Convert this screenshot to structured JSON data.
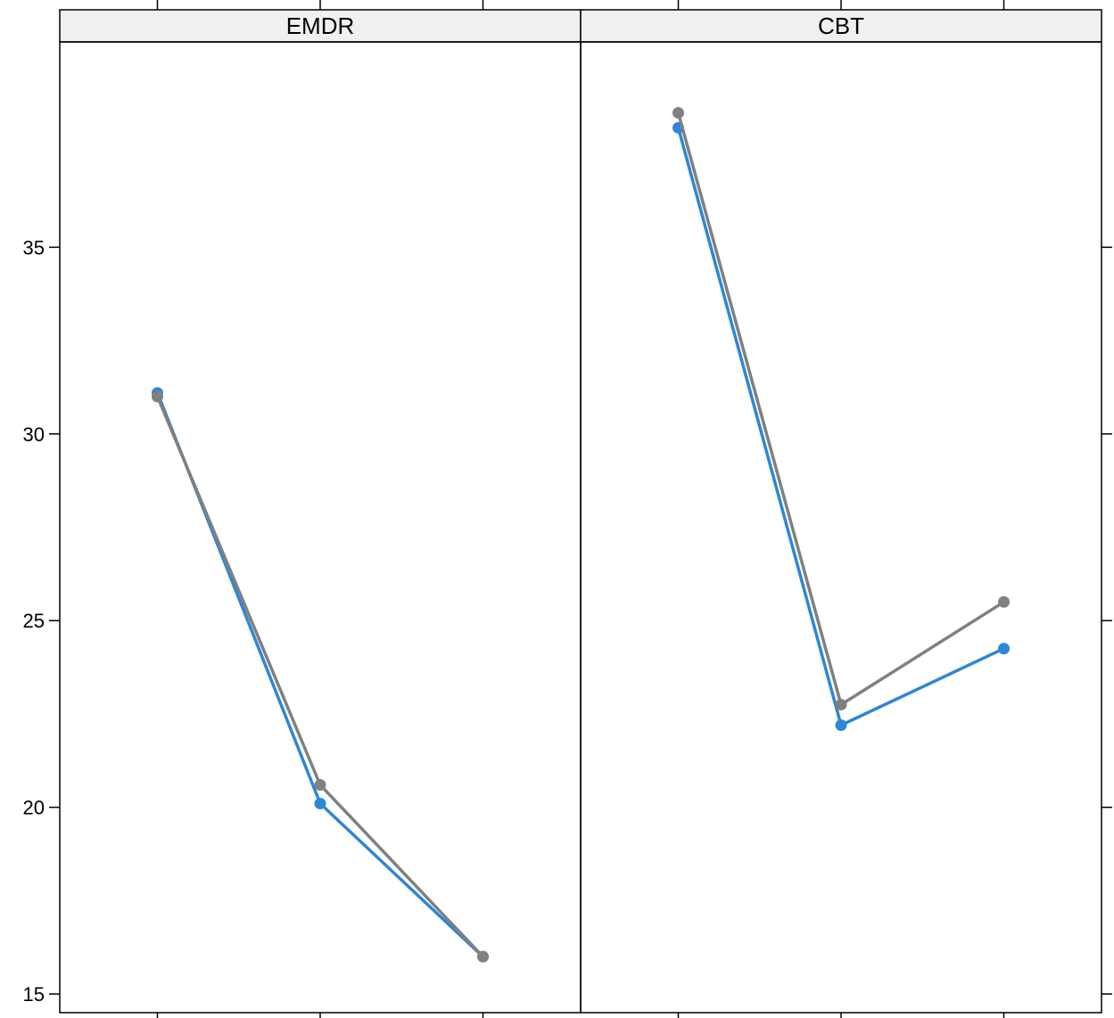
{
  "chart_data": {
    "type": "line",
    "panels": [
      {
        "label": "EMDR",
        "series": [
          {
            "values": [
              31.1,
              20.1,
              16.0
            ],
            "color": "#2e86d6"
          },
          {
            "values": [
              31.0,
              20.6,
              16.0
            ],
            "color": "#808080"
          }
        ]
      },
      {
        "label": "CBT",
        "series": [
          {
            "values": [
              38.2,
              22.2,
              24.25
            ],
            "color": "#2e86d6"
          },
          {
            "values": [
              38.6,
              22.75,
              25.5
            ],
            "color": "#808080"
          }
        ]
      }
    ],
    "x": [
      1,
      2,
      3
    ],
    "xlim": [
      0.4,
      3.6
    ],
    "ylim": [
      14.5,
      40.5
    ],
    "yticks": [
      15,
      20,
      25,
      30,
      35
    ],
    "ytick_labels": [
      "15",
      "20",
      "25",
      "30",
      "35"
    ],
    "grid": false,
    "strip_color": "#f0f0f0"
  }
}
